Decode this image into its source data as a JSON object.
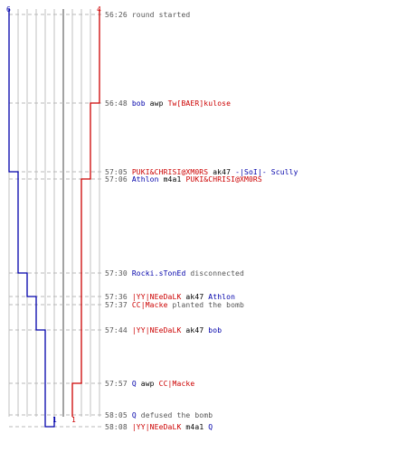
{
  "colors": {
    "team_blue": "#0000aa",
    "team_red": "#cc0000",
    "neutral_text": "#000000",
    "time_text": "#555555",
    "info_text": "#555555",
    "grid_line": "#c0c0c0",
    "center_line": "#666666",
    "dash_line": "#b8b8b8"
  },
  "team_counts": {
    "blue_start": "6",
    "red_start": "4",
    "blue_end": "1",
    "red_end": "1"
  },
  "events": [
    {
      "time": "56:26",
      "parts": [
        {
          "text": "round started",
          "role": "info"
        }
      ]
    },
    {
      "time": "56:48",
      "parts": [
        {
          "text": "bob",
          "role": "blue"
        },
        {
          "text": " awp ",
          "role": "neutral"
        },
        {
          "text": "Tw[BAER]kulose",
          "role": "red"
        }
      ]
    },
    {
      "time": "57:05",
      "parts": [
        {
          "text": "PUKI&CHRISI@XM0RS",
          "role": "red"
        },
        {
          "text": " ak47 ",
          "role": "neutral"
        },
        {
          "text": "-|SoI|- Scully",
          "role": "blue"
        }
      ]
    },
    {
      "time": "57:06",
      "parts": [
        {
          "text": "Athlon",
          "role": "blue"
        },
        {
          "text": " m4a1 ",
          "role": "neutral"
        },
        {
          "text": "PUKI&CHRISI@XM0RS",
          "role": "red"
        }
      ]
    },
    {
      "time": "57:30",
      "parts": [
        {
          "text": "Rocki.sTonEd",
          "role": "blue"
        },
        {
          "text": " disconnected",
          "role": "info"
        }
      ]
    },
    {
      "time": "57:36",
      "parts": [
        {
          "text": "|YY|NEeDaLK",
          "role": "red"
        },
        {
          "text": " ak47 ",
          "role": "neutral"
        },
        {
          "text": "Athlon",
          "role": "blue"
        }
      ]
    },
    {
      "time": "57:37",
      "parts": [
        {
          "text": "CC|Macke",
          "role": "red"
        },
        {
          "text": " planted the bomb",
          "role": "info"
        }
      ]
    },
    {
      "time": "57:44",
      "parts": [
        {
          "text": "|YY|NEeDaLK",
          "role": "red"
        },
        {
          "text": " ak47 ",
          "role": "neutral"
        },
        {
          "text": "bob",
          "role": "blue"
        }
      ]
    },
    {
      "time": "57:57",
      "parts": [
        {
          "text": "Q",
          "role": "blue"
        },
        {
          "text": " awp ",
          "role": "neutral"
        },
        {
          "text": "CC|Macke",
          "role": "red"
        }
      ]
    },
    {
      "time": "58:05",
      "parts": [
        {
          "text": "Q",
          "role": "blue"
        },
        {
          "text": " defused the bomb",
          "role": "info"
        }
      ]
    },
    {
      "time": "58:08",
      "parts": [
        {
          "text": "|YY|NEeDaLK",
          "role": "red"
        },
        {
          "text": " m4a1 ",
          "role": "neutral"
        },
        {
          "text": "Q",
          "role": "blue"
        }
      ]
    }
  ]
}
